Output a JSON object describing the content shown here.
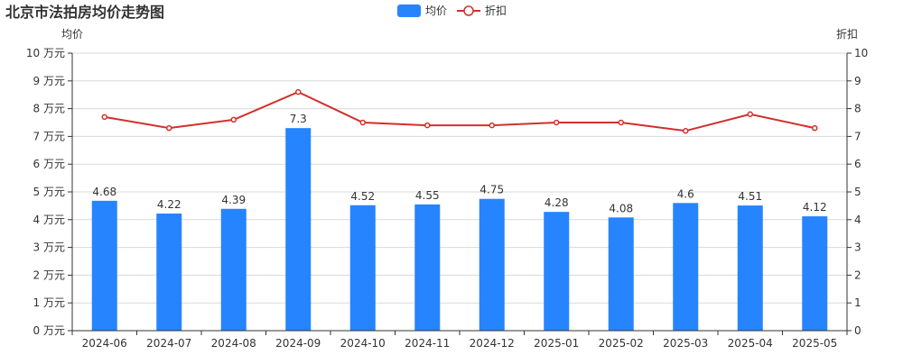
{
  "chart_data": {
    "type": "bar",
    "title": "北京市法拍房均价走势图",
    "categories": [
      "2024-06",
      "2024-07",
      "2024-08",
      "2024-09",
      "2024-10",
      "2024-11",
      "2024-12",
      "2025-01",
      "2025-02",
      "2025-03",
      "2025-04",
      "2025-05"
    ],
    "series": [
      {
        "name": "均价",
        "type": "bar",
        "axis": "left",
        "color": "#2684ff",
        "values": [
          4.68,
          4.22,
          4.39,
          7.3,
          4.52,
          4.55,
          4.75,
          4.28,
          4.08,
          4.6,
          4.51,
          4.12
        ],
        "labels": [
          "4.68",
          "4.22",
          "4.39",
          "7.3",
          "4.52",
          "4.55",
          "4.75",
          "4.28",
          "4.08",
          "4.6",
          "4.51",
          "4.12"
        ]
      },
      {
        "name": "折扣",
        "type": "line",
        "axis": "right",
        "color": "#d0302b",
        "values": [
          7.7,
          7.3,
          7.6,
          8.6,
          7.5,
          7.4,
          7.4,
          7.5,
          7.5,
          7.2,
          7.8,
          7.3
        ]
      }
    ],
    "left_axis": {
      "name": "均价",
      "min": 0,
      "max": 10,
      "ticks": [
        "0 万元",
        "1 万元",
        "2 万元",
        "3 万元",
        "4 万元",
        "5 万元",
        "6 万元",
        "7 万元",
        "8 万元",
        "9 万元",
        "10 万元"
      ]
    },
    "right_axis": {
      "name": "折扣",
      "min": 0,
      "max": 10,
      "ticks": [
        "0",
        "1",
        "2",
        "3",
        "4",
        "5",
        "6",
        "7",
        "8",
        "9",
        "10"
      ]
    },
    "legend": {
      "placement": "top-center",
      "items": [
        "均价",
        "折扣"
      ]
    },
    "grid": true
  }
}
